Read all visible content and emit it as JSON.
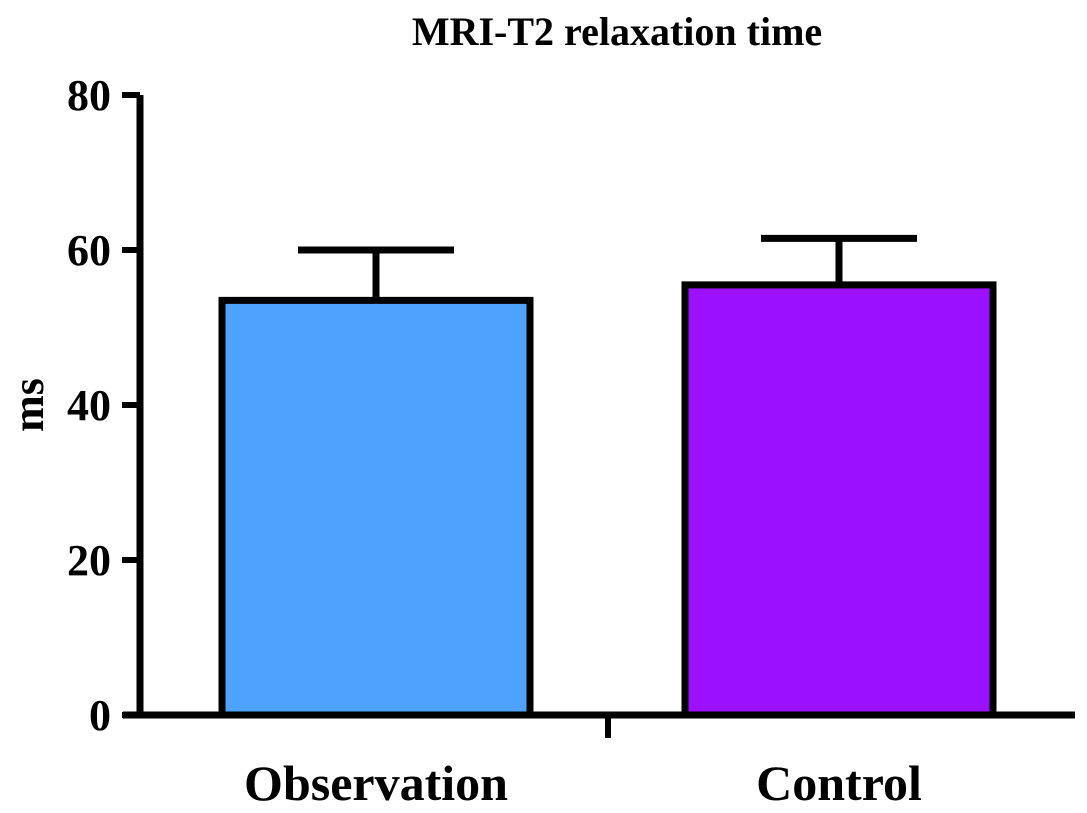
{
  "chart_data": {
    "type": "bar",
    "title": "MRI-T2 relaxation time",
    "xlabel": "",
    "ylabel": "ms",
    "ylim": [
      0,
      80
    ],
    "yticks": [
      0,
      20,
      40,
      60,
      80
    ],
    "ytick_labels": [
      "0",
      "20",
      "40",
      "60",
      "80"
    ],
    "categories": [
      "Observation",
      "Control"
    ],
    "values": [
      53.5,
      55.5
    ],
    "error_upper": [
      6.5,
      6.0
    ],
    "colors": [
      "#4DA3FF",
      "#9B10FF"
    ],
    "grid": false,
    "legend": false
  }
}
